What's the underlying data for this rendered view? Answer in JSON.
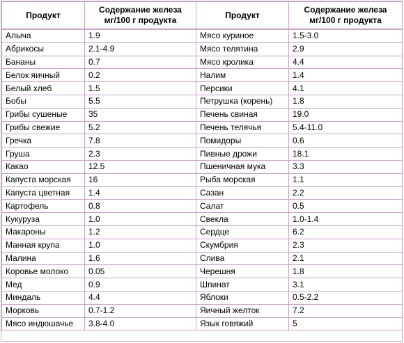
{
  "headers": {
    "product_left": "Продукт",
    "iron_left_line1": "Содержание железа",
    "iron_left_line2": "мг/100 г продукта",
    "product_right": "Продукт",
    "iron_right_line1": "Содержание железа",
    "iron_right_line2": "мг/100 г продукта"
  },
  "rows": [
    {
      "p1": "Алыча",
      "v1": "1.9",
      "p2": "Мясо куриное",
      "v2": "1.5-3.0"
    },
    {
      "p1": "Абрикосы",
      "v1": "2.1-4.9",
      "p2": "Мясо телятина",
      "v2": "2.9"
    },
    {
      "p1": "Бананы",
      "v1": "0.7",
      "p2": "Мясо кролика",
      "v2": "4.4"
    },
    {
      "p1": "Белок яичный",
      "v1": "0.2",
      "p2": "Налим",
      "v2": "1.4"
    },
    {
      "p1": "Белый хлеб",
      "v1": "1.5",
      "p2": "Персики",
      "v2": "4.1"
    },
    {
      "p1": "Бобы",
      "v1": "5.5",
      "p2": "Петрушка (корень)",
      "v2": "1.8"
    },
    {
      "p1": "Грибы сушеные",
      "v1": "35",
      "p2": "Печень свиная",
      "v2": "19.0"
    },
    {
      "p1": "Грибы свежие",
      "v1": "5.2",
      "p2": "Печень телячья",
      "v2": "5.4-11.0"
    },
    {
      "p1": "Гречка",
      "v1": "7.8",
      "p2": "Помидоры",
      "v2": "0.6"
    },
    {
      "p1": "Груша",
      "v1": "2.3",
      "p2": "Пивные дрожи",
      "v2": "18.1"
    },
    {
      "p1": "Какао",
      "v1": "12.5",
      "p2": "Пшеничная мука",
      "v2": "3.3"
    },
    {
      "p1": "Капуста морская",
      "v1": "16",
      "p2": "Рыба морская",
      "v2": "1.1"
    },
    {
      "p1": "Капуста цветная",
      "v1": "1.4",
      "p2": "Сазан",
      "v2": "2.2"
    },
    {
      "p1": "Картофель",
      "v1": "0.8",
      "p2": "Салат",
      "v2": "0.5"
    },
    {
      "p1": "Кукуруза",
      "v1": "1.0",
      "p2": "Свекла",
      "v2": "1.0-1.4"
    },
    {
      "p1": "Макароны",
      "v1": "1.2",
      "p2": "Сердце",
      "v2": "6.2"
    },
    {
      "p1": "Манная крупа",
      "v1": "1.0",
      "p2": "Скумбрия",
      "v2": "2.3"
    },
    {
      "p1": "Малина",
      "v1": "1.6",
      "p2": "Слива",
      "v2": "2.1"
    },
    {
      "p1": "Коровье молоко",
      "v1": "0.05",
      "p2": "Черешня",
      "v2": "1.8"
    },
    {
      "p1": "Мед",
      "v1": "0.9",
      "p2": "Шпинат",
      "v2": "3.1"
    },
    {
      "p1": "Миндаль",
      "v1": "4.4",
      "p2": "Яблоки",
      "v2": "0.5-2.2"
    },
    {
      "p1": "Морковь",
      "v1": "0.7-1.2",
      "p2": "Яичный желток",
      "v2": "7.2"
    },
    {
      "p1": "Мясо индюшачье",
      "v1": "3.8-4.0",
      "p2": "Язык говяжий",
      "v2": "5"
    }
  ],
  "colors": {
    "border": "#c8a0c8",
    "text": "#000000",
    "background": "#ffffff"
  }
}
